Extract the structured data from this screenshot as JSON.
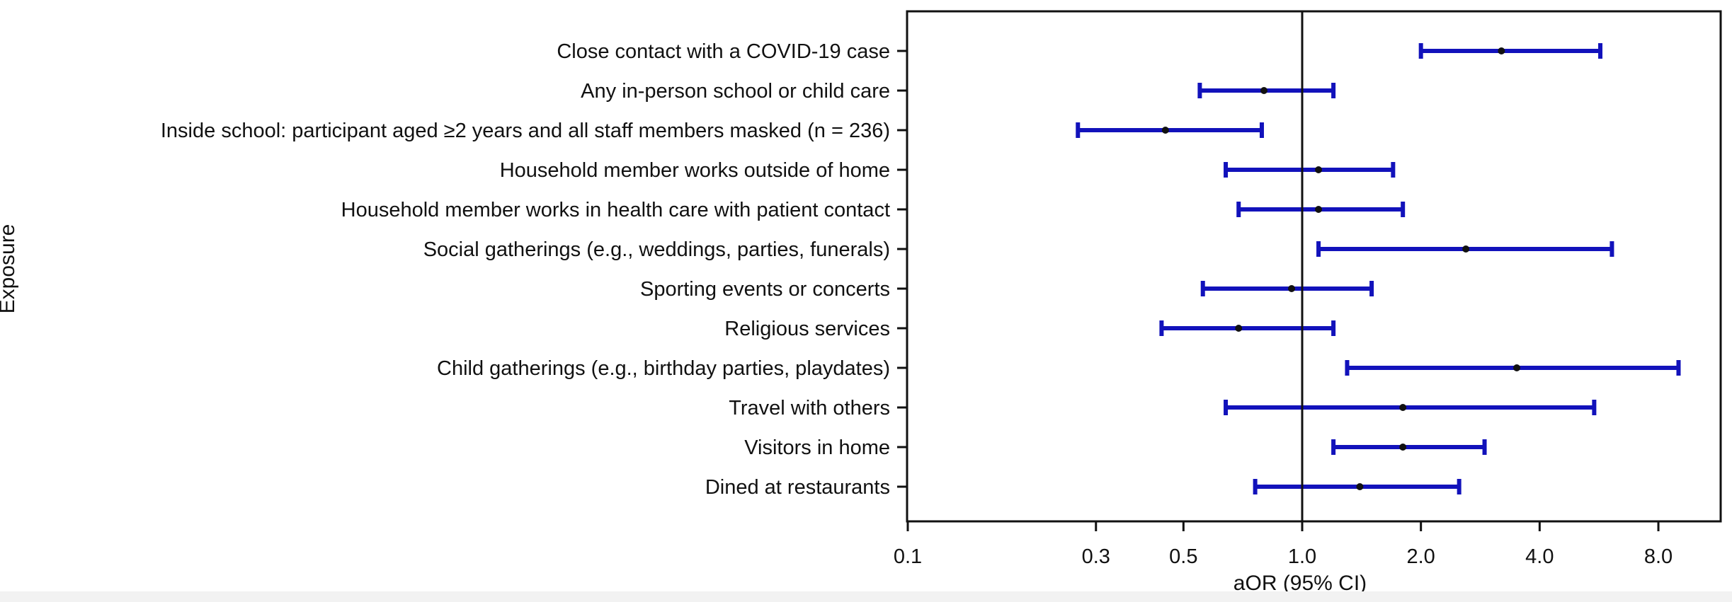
{
  "chart_data": {
    "type": "forest",
    "xlabel": "aOR (95% CI)",
    "ylabel": "Exposure",
    "xscale": "log",
    "xlim": [
      0.1,
      10
    ],
    "reference_line": 1.0,
    "xticks": [
      0.1,
      0.3,
      0.5,
      1.0,
      2.0,
      4.0,
      8.0
    ],
    "xtick_labels": [
      "0.1",
      "0.3",
      "0.5",
      "1.0",
      "2.0",
      "4.0",
      "8.0"
    ],
    "grid": false,
    "colors": {
      "ci": "#1212bb",
      "point": "#111111",
      "axis": "#111111"
    },
    "rows": [
      {
        "label": "Close contact with a COVID-19 case",
        "aor": 3.2,
        "lower": 2.0,
        "upper": 5.7
      },
      {
        "label": "Any in-person school or child care",
        "aor": 0.8,
        "lower": 0.55,
        "upper": 1.2
      },
      {
        "label": "Inside school: participant aged ≥2 years and all staff members masked (n = 236)",
        "aor": 0.45,
        "lower": 0.27,
        "upper": 0.79
      },
      {
        "label": "Household member works outside of home",
        "aor": 1.1,
        "lower": 0.64,
        "upper": 1.7
      },
      {
        "label": "Household member works in health care with patient contact",
        "aor": 1.1,
        "lower": 0.69,
        "upper": 1.8
      },
      {
        "label": "Social gatherings (e.g., weddings, parties, funerals)",
        "aor": 2.6,
        "lower": 1.1,
        "upper": 6.1
      },
      {
        "label": "Sporting events or concerts",
        "aor": 0.94,
        "lower": 0.56,
        "upper": 1.5
      },
      {
        "label": "Religious services",
        "aor": 0.69,
        "lower": 0.44,
        "upper": 1.2
      },
      {
        "label": "Child gatherings (e.g., birthday parties, playdates)",
        "aor": 3.5,
        "lower": 1.3,
        "upper": 9.0
      },
      {
        "label": "Travel with others",
        "aor": 1.8,
        "lower": 0.64,
        "upper": 5.5
      },
      {
        "label": "Visitors in home",
        "aor": 1.8,
        "lower": 1.2,
        "upper": 2.9
      },
      {
        "label": "Dined at restaurants",
        "aor": 1.4,
        "lower": 0.76,
        "upper": 2.5
      }
    ]
  }
}
